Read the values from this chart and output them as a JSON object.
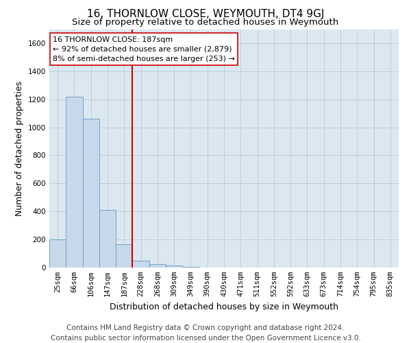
{
  "title": "16, THORNLOW CLOSE, WEYMOUTH, DT4 9GJ",
  "subtitle": "Size of property relative to detached houses in Weymouth",
  "xlabel": "Distribution of detached houses by size in Weymouth",
  "ylabel": "Number of detached properties",
  "categories": [
    "25sqm",
    "66sqm",
    "106sqm",
    "147sqm",
    "187sqm",
    "228sqm",
    "268sqm",
    "309sqm",
    "349sqm",
    "390sqm",
    "430sqm",
    "471sqm",
    "511sqm",
    "552sqm",
    "592sqm",
    "633sqm",
    "673sqm",
    "714sqm",
    "754sqm",
    "795sqm",
    "835sqm"
  ],
  "values": [
    200,
    1220,
    1060,
    410,
    165,
    50,
    25,
    15,
    5,
    0,
    0,
    0,
    0,
    0,
    0,
    0,
    0,
    0,
    0,
    0,
    0
  ],
  "bar_color": "#c8d8eb",
  "bar_edge_color": "#6699bb",
  "highlight_bar_index": 4,
  "vline_color": "#cc0000",
  "annotation_text": "16 THORNLOW CLOSE: 187sqm\n← 92% of detached houses are smaller (2,879)\n8% of semi-detached houses are larger (253) →",
  "annotation_box_color": "#ffffff",
  "annotation_box_edge_color": "#cc0000",
  "ylim": [
    0,
    1700
  ],
  "yticks": [
    0,
    200,
    400,
    600,
    800,
    1000,
    1200,
    1400,
    1600
  ],
  "footer_line1": "Contains HM Land Registry data © Crown copyright and database right 2024.",
  "footer_line2": "Contains public sector information licensed under the Open Government Licence v3.0.",
  "background_color": "#ffffff",
  "axes_bg_color": "#dce8f0",
  "grid_color": "#b0c4d8",
  "title_fontsize": 11,
  "subtitle_fontsize": 9.5,
  "axis_label_fontsize": 9,
  "tick_fontsize": 7.5,
  "annotation_fontsize": 8,
  "footer_fontsize": 7.5
}
